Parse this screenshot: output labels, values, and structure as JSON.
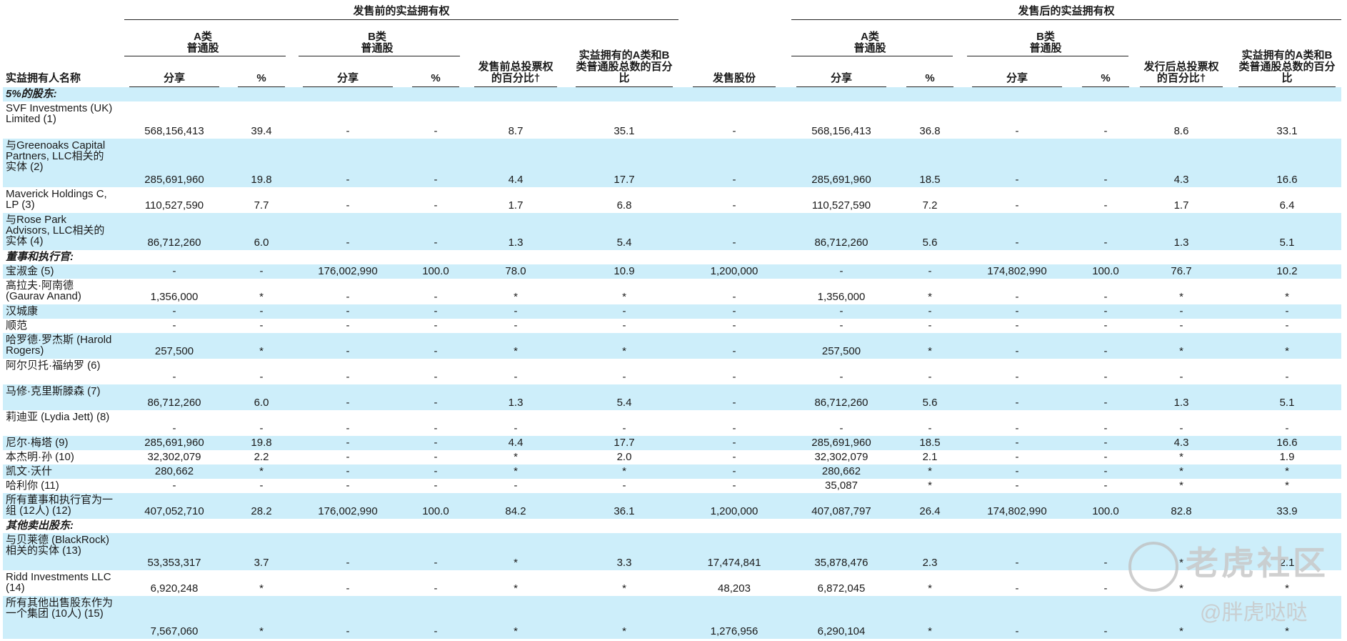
{
  "group_headers": {
    "pre": "发售前的实益拥有权",
    "post": "发售后的实益拥有权"
  },
  "columns": {
    "name": "实益拥有人名称",
    "class_a": "A类\n普通股",
    "class_b": "B类\n普通股",
    "shares": "分享",
    "pct": "%",
    "pre_vote": "发售前总投票权\n的百分比†",
    "pre_ab": "实益拥有的A类和B\n类普通股总数的百分\n比",
    "offered": "发售股份",
    "post_vote": "发行后总投票权\n的百分比†",
    "post_ab": "实益拥有的A类和B\n类普通股总数的百分\n比"
  },
  "sections": {
    "s1": "5%的股东:",
    "s2": "董事和执行官:",
    "s3": "其他卖出股东:"
  },
  "rows": [
    {
      "name": "SVF Investments (UK) Limited (1)",
      "v": [
        "568,156,413",
        "39.4",
        "-",
        "-",
        "8.7",
        "35.1",
        "-",
        "568,156,413",
        "36.8",
        "-",
        "-",
        "8.6",
        "33.1"
      ]
    },
    {
      "name": "与Greenoaks Capital Partners, LLC相关的实体 (2)",
      "v": [
        "285,691,960",
        "19.8",
        "-",
        "-",
        "4.4",
        "17.7",
        "-",
        "285,691,960",
        "18.5",
        "-",
        "-",
        "4.3",
        "16.6"
      ]
    },
    {
      "name": "Maverick Holdings C, LP (3)",
      "v": [
        "110,527,590",
        "7.7",
        "-",
        "-",
        "1.7",
        "6.8",
        "-",
        "110,527,590",
        "7.2",
        "-",
        "-",
        "1.7",
        "6.4"
      ]
    },
    {
      "name": "与Rose Park Advisors, LLC相关的实体 (4)",
      "v": [
        "86,712,260",
        "6.0",
        "-",
        "-",
        "1.3",
        "5.4",
        "-",
        "86,712,260",
        "5.6",
        "-",
        "-",
        "1.3",
        "5.1"
      ]
    },
    {
      "name": "宝淑金 (5)",
      "v": [
        "-",
        "-",
        "176,002,990",
        "100.0",
        "78.0",
        "10.9",
        "1,200,000",
        "-",
        "-",
        "174,802,990",
        "100.0",
        "76.7",
        "10.2"
      ]
    },
    {
      "name": "高拉夫·阿南德 (Gaurav Anand)",
      "v": [
        "1,356,000",
        "*",
        "-",
        "-",
        "*",
        "*",
        "-",
        "1,356,000",
        "*",
        "-",
        "-",
        "*",
        "*"
      ]
    },
    {
      "name": "汉城康",
      "v": [
        "-",
        "-",
        "-",
        "-",
        "-",
        "-",
        "-",
        "-",
        "-",
        "-",
        "-",
        "-",
        "-"
      ]
    },
    {
      "name": "顺范",
      "v": [
        "-",
        "-",
        "-",
        "-",
        "-",
        "-",
        "-",
        "-",
        "-",
        "-",
        "-",
        "-",
        "-"
      ]
    },
    {
      "name": "哈罗德·罗杰斯 (Harold Rogers)",
      "v": [
        "257,500",
        "*",
        "-",
        "-",
        "*",
        "*",
        "-",
        "257,500",
        "*",
        "-",
        "-",
        "*",
        "*"
      ]
    },
    {
      "name": "阿尔贝托·福纳罗 (6)",
      "v": [
        "-",
        "-",
        "-",
        "-",
        "-",
        "-",
        "-",
        "-",
        "-",
        "-",
        "-",
        "-",
        "-"
      ]
    },
    {
      "name": "马修·克里斯滕森 (7)",
      "v": [
        "86,712,260",
        "6.0",
        "-",
        "-",
        "1.3",
        "5.4",
        "-",
        "86,712,260",
        "5.6",
        "-",
        "-",
        "1.3",
        "5.1"
      ]
    },
    {
      "name": "莉迪亚 (Lydia Jett) (8)",
      "v": [
        "-",
        "-",
        "-",
        "-",
        "-",
        "-",
        "-",
        "-",
        "-",
        "-",
        "-",
        "-",
        "-"
      ]
    },
    {
      "name": "尼尔·梅塔 (9)",
      "v": [
        "285,691,960",
        "19.8",
        "-",
        "-",
        "4.4",
        "17.7",
        "-",
        "285,691,960",
        "18.5",
        "-",
        "-",
        "4.3",
        "16.6"
      ]
    },
    {
      "name": "本杰明·孙 (10)",
      "v": [
        "32,302,079",
        "2.2",
        "-",
        "-",
        "*",
        "2.0",
        "-",
        "32,302,079",
        "2.1",
        "-",
        "-",
        "*",
        "1.9"
      ]
    },
    {
      "name": "凯文·沃什",
      "v": [
        "280,662",
        "*",
        "-",
        "-",
        "*",
        "*",
        "-",
        "280,662",
        "*",
        "-",
        "-",
        "*",
        "*"
      ]
    },
    {
      "name": "哈利你 (11)",
      "v": [
        "-",
        "-",
        "-",
        "-",
        "-",
        "-",
        "-",
        "35,087",
        "*",
        "-",
        "-",
        "*",
        "*"
      ]
    },
    {
      "name": "所有董事和执行官为一组 (12人) (12)",
      "v": [
        "407,052,710",
        "28.2",
        "176,002,990",
        "100.0",
        "84.2",
        "36.1",
        "1,200,000",
        "407,087,797",
        "26.4",
        "174,802,990",
        "100.0",
        "82.8",
        "33.9"
      ]
    },
    {
      "name": "与贝莱德 (BlackRock) 相关的实体 (13)",
      "v": [
        "53,353,317",
        "3.7",
        "-",
        "-",
        "*",
        "3.3",
        "17,474,841",
        "35,878,476",
        "2.3",
        "-",
        "-",
        "*",
        "2.1"
      ]
    },
    {
      "name": "Ridd Investments LLC (14)",
      "v": [
        "6,920,248",
        "*",
        "-",
        "-",
        "*",
        "*",
        "48,203",
        "6,872,045",
        "*",
        "-",
        "-",
        "*",
        "*"
      ]
    },
    {
      "name": "所有其他出售股东作为一个集团 (10人) (15)",
      "v": [
        "7,567,060",
        "*",
        "-",
        "-",
        "*",
        "*",
        "1,276,956",
        "6,290,104",
        "*",
        "-",
        "-",
        "*",
        "*"
      ]
    }
  ],
  "watermark": {
    "brand": "老虎社区",
    "user": "@胖虎哒哒"
  }
}
